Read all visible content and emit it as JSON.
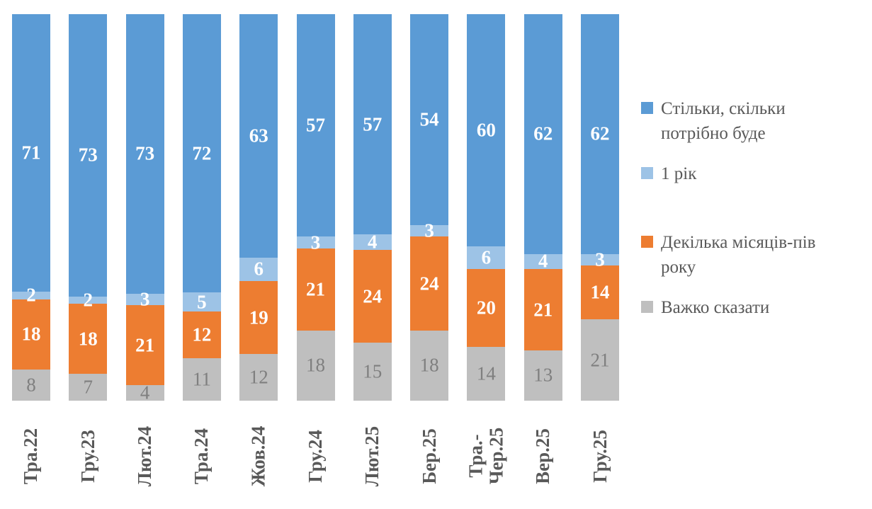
{
  "chart_data": {
    "type": "bar",
    "subtype": "stacked-100-percent-vertical",
    "grid": false,
    "legend_position": "right",
    "categories": [
      "Тра.22",
      "Гру.23",
      "Лют.24",
      "Тра.24",
      "Жов.24",
      "Гру.24",
      "Лют.25",
      "Бер.25",
      "Тра.-Чер.25",
      "Вер.25",
      "Гру.25"
    ],
    "category_display_lines": [
      [
        "Тра.22"
      ],
      [
        "Гру.23"
      ],
      [
        "Лют.24"
      ],
      [
        "Тра.24"
      ],
      [
        "Жов.24"
      ],
      [
        "Гру.24"
      ],
      [
        "Лют.25"
      ],
      [
        "Бер.25"
      ],
      [
        "Тра.-",
        "Чер.25"
      ],
      [
        "Вер.25"
      ],
      [
        "Гру.25"
      ]
    ],
    "series": [
      {
        "name": "Стільки, скільки потрібно буде",
        "color": "#5B9BD5",
        "label_color": "#FFFFFF",
        "label_bold": true,
        "values": [
          71,
          73,
          73,
          72,
          63,
          57,
          57,
          54,
          60,
          62,
          62
        ]
      },
      {
        "name": "1 рік",
        "color": "#9DC3E6",
        "label_color": "#FFFFFF",
        "label_bold": true,
        "values": [
          2,
          2,
          3,
          5,
          6,
          3,
          4,
          3,
          6,
          4,
          3
        ]
      },
      {
        "name": "Декілька місяців-пів року",
        "color": "#ED7D31",
        "label_color": "#FFFFFF",
        "label_bold": true,
        "values": [
          18,
          18,
          21,
          12,
          19,
          21,
          24,
          24,
          20,
          21,
          14
        ]
      },
      {
        "name": "Важко сказати",
        "color": "#BFBFBF",
        "label_color": "#7F7F7F",
        "label_bold": false,
        "values": [
          8,
          7,
          4,
          11,
          12,
          18,
          15,
          18,
          14,
          13,
          21
        ]
      }
    ],
    "legend": {
      "items": [
        {
          "series_index": 0,
          "lines": [
            "Стільки, скільки",
            "потрібно буде"
          ]
        },
        {
          "series_index": 1,
          "lines": [
            "1 рік"
          ]
        },
        {
          "series_index": 2,
          "lines": [
            "Декілька місяців-пів",
            "року"
          ]
        },
        {
          "series_index": 3,
          "lines": [
            "Важко сказати"
          ]
        }
      ]
    },
    "axis": {
      "x_label_color": "#595959",
      "x_label_rotation_deg": -90
    }
  }
}
